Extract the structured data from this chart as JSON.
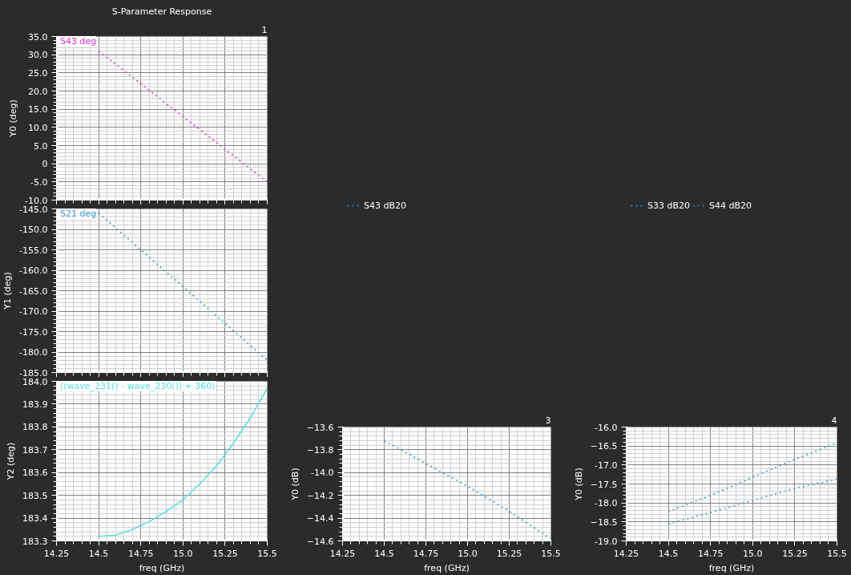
{
  "chart_data": [
    {
      "type": "line",
      "title": "S-Parameter Response",
      "annotations": [
        "1"
      ],
      "ylabel": "Y0 (deg)",
      "x": [
        14.5,
        14.75,
        15.0,
        15.25,
        15.5
      ],
      "series": [
        {
          "name": "S43 deg",
          "color": "#cc33cc",
          "values": [
            31.0,
            22.0,
            13.0,
            4.0,
            -5.0
          ]
        }
      ],
      "xlim": [
        14.25,
        15.5
      ],
      "xticks": [
        {
          "value": 14.25,
          "label": null
        },
        {
          "value": 14.5,
          "label": null
        },
        {
          "value": 14.75,
          "label": null
        },
        {
          "value": 15.0,
          "label": null
        },
        {
          "value": 15.25,
          "label": null
        },
        {
          "value": 15.5,
          "label": null
        }
      ],
      "ylim": [
        -10,
        35
      ],
      "yticks": [
        {
          "value": -10,
          "label": "-10.0"
        },
        {
          "value": -5,
          "label": "-5.0"
        },
        0,
        {
          "value": 5,
          "label": "5.0"
        },
        {
          "value": 10,
          "label": "10.0"
        },
        {
          "value": 15,
          "label": "15.0"
        },
        {
          "value": 20,
          "label": "20.0"
        },
        {
          "value": 25,
          "label": "25.0"
        },
        {
          "value": 30,
          "label": "30.0"
        },
        {
          "value": 35,
          "label": "35.0"
        }
      ],
      "tick_labels": "y",
      "grid": true,
      "legend": "top left",
      "line_style": "dotted"
    },
    {
      "type": "line",
      "ylabel": "Y1 (deg)",
      "x": [
        14.5,
        15.0,
        15.5
      ],
      "series": [
        {
          "name": "S21 deg",
          "color": "#3a8ec9",
          "values": [
            -146.0,
            -164.0,
            -182.0
          ]
        }
      ],
      "xlim": [
        14.25,
        15.5
      ],
      "xticks": [
        {
          "value": 14.25,
          "label": null
        },
        {
          "value": 14.5,
          "label": null
        },
        {
          "value": 14.75,
          "label": null
        },
        {
          "value": 15.0,
          "label": null
        },
        {
          "value": 15.25,
          "label": null
        },
        {
          "value": 15.5,
          "label": null
        }
      ],
      "ylim": [
        -185,
        -145
      ],
      "yticks": [
        {
          "value": -185,
          "label": "-185.0"
        },
        {
          "value": -180,
          "label": "-180.0"
        },
        {
          "value": -175,
          "label": "-175.0"
        },
        {
          "value": -170,
          "label": "-170.0"
        },
        {
          "value": -165,
          "label": "-165.0"
        },
        {
          "value": -160,
          "label": "-160.0"
        },
        {
          "value": -155,
          "label": "-155.0"
        },
        {
          "value": -150,
          "label": "-150.0"
        },
        {
          "value": -145,
          "label": "-145.0"
        }
      ],
      "tick_labels": "y",
      "grid": true,
      "legend": "top left",
      "line_style": "dotted"
    },
    {
      "type": "line",
      "xlabel": "freq (GHz)",
      "ylabel": "Y2 (deg)",
      "x": [
        14.5,
        14.6,
        14.7,
        14.8,
        14.9,
        15.0,
        15.1,
        15.2,
        15.3,
        15.4,
        15.5
      ],
      "series": [
        {
          "name": "((wave_231() - wave_230()) + 360)",
          "color": "#55dddd",
          "values": [
            183.32,
            183.325,
            183.35,
            183.385,
            183.43,
            183.48,
            183.55,
            183.63,
            183.73,
            183.84,
            183.97
          ]
        }
      ],
      "xlim": [
        14.25,
        15.5
      ],
      "xticks": [
        14.25,
        14.5,
        14.75,
        {
          "value": 15.0,
          "label": "15.0"
        },
        15.25,
        15.5
      ],
      "ylim": [
        183.3,
        184.0
      ],
      "yticks": [
        183.3,
        183.4,
        183.5,
        183.6,
        183.7,
        183.8,
        183.9,
        {
          "value": 184.0,
          "label": "184.0"
        }
      ],
      "grid": true,
      "legend": "top left",
      "line_style": "solid"
    },
    {
      "type": "line",
      "annotations": [
        "3"
      ],
      "xlabel": "freq (GHz)",
      "ylabel": "Y0 (dB)",
      "x": [
        14.5,
        14.75,
        15.0,
        15.25,
        15.5
      ],
      "series": [
        {
          "name": "S43 dB20",
          "color": "#3a8ec9",
          "values": [
            -13.72,
            -13.92,
            -14.12,
            -14.34,
            -14.58
          ]
        }
      ],
      "xlim": [
        14.25,
        15.5
      ],
      "xticks": [
        14.25,
        14.5,
        14.75,
        {
          "value": 15.0,
          "label": "15.0"
        },
        15.25,
        15.5
      ],
      "ylim": [
        -14.6,
        -13.6
      ],
      "yticks": [
        -14.6,
        -14.4,
        -14.2,
        {
          "value": -14.0,
          "label": "-14.0"
        },
        -13.8,
        -13.6
      ],
      "grid": true,
      "legend": "top",
      "line_style": "dotted"
    },
    {
      "type": "line",
      "annotations": [
        "4"
      ],
      "xlabel": "freq (GHz)",
      "ylabel": "Y0 (dB)",
      "x": [
        14.5,
        14.75,
        15.0,
        15.25,
        15.5
      ],
      "series": [
        {
          "name": "S33 dB20",
          "color": "#3a8ec9",
          "values": [
            -18.23,
            -17.8,
            -17.32,
            -16.85,
            -16.42
          ]
        },
        {
          "name": "S44 dB20",
          "color": "#3a8ec9",
          "values": [
            -18.55,
            -18.25,
            -17.93,
            -17.62,
            -17.37
          ]
        }
      ],
      "xlim": [
        14.25,
        15.5
      ],
      "xticks": [
        14.25,
        14.5,
        14.75,
        {
          "value": 15.0,
          "label": "15.0"
        },
        15.25,
        15.5
      ],
      "ylim": [
        -19.0,
        -16.0
      ],
      "yticks": [
        {
          "value": -19.0,
          "label": "-19.0"
        },
        -18.5,
        {
          "value": -18.0,
          "label": "-18.0"
        },
        -17.5,
        {
          "value": -17.0,
          "label": "-17.0"
        },
        -16.5,
        {
          "value": -16.0,
          "label": "-16.0"
        }
      ],
      "grid": true,
      "legend": "top",
      "line_style": "dotted"
    }
  ]
}
